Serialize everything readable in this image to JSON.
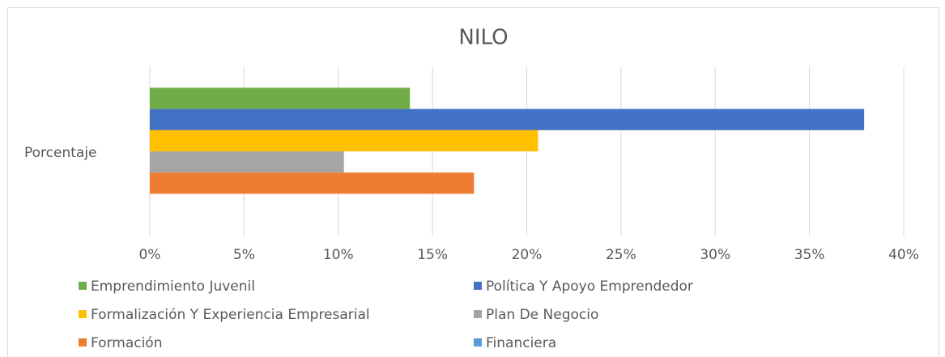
{
  "chart_data": {
    "type": "bar",
    "orientation": "horizontal",
    "title": "NILO",
    "categories": [
      "Porcentaje"
    ],
    "series": [
      {
        "name": "Emprendimiento Juvenil",
        "color": "#70ad47",
        "values": [
          13.8
        ]
      },
      {
        "name": "Política Y Apoyo Emprendedor",
        "color": "#4472c4",
        "values": [
          37.9
        ]
      },
      {
        "name": "Formalización Y Experiencia Empresarial",
        "color": "#ffc000",
        "values": [
          20.6
        ]
      },
      {
        "name": "Plan De Negocio",
        "color": "#a5a5a5",
        "values": [
          10.3
        ]
      },
      {
        "name": "Formación",
        "color": "#ed7d31",
        "values": [
          17.2
        ]
      },
      {
        "name": "Financiera",
        "color": "#5b9bd5",
        "values": [
          0
        ]
      }
    ],
    "xlim": [
      0,
      40
    ],
    "xticks": [
      {
        "value": 0,
        "label": "0%"
      },
      {
        "value": 5,
        "label": "5%"
      },
      {
        "value": 10,
        "label": "10%"
      },
      {
        "value": 15,
        "label": "15%"
      },
      {
        "value": 20,
        "label": "20%"
      },
      {
        "value": 25,
        "label": "25%"
      },
      {
        "value": 30,
        "label": "30%"
      },
      {
        "value": 35,
        "label": "35%"
      },
      {
        "value": 40,
        "label": "40%"
      }
    ],
    "grid": true,
    "legend": "bottom"
  }
}
